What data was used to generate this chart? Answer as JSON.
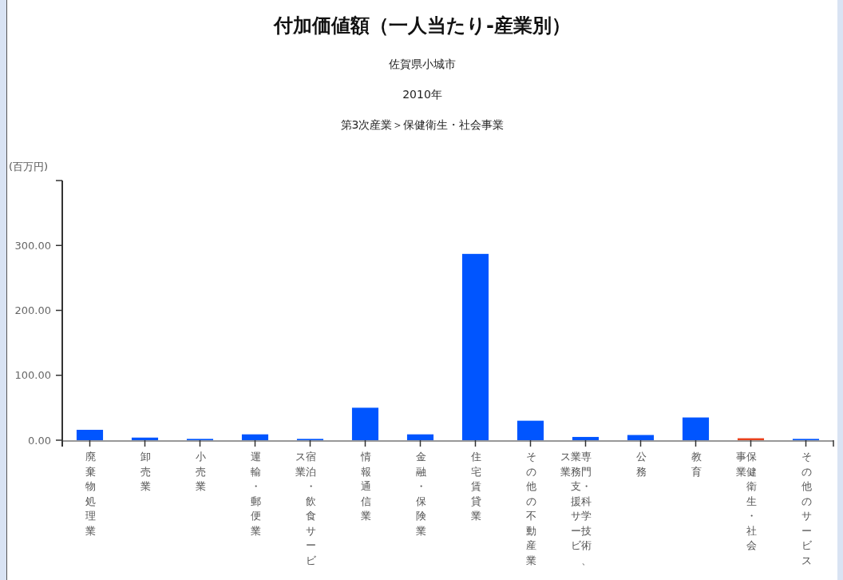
{
  "chart_data": {
    "type": "bar",
    "title": "付加価値額（一人当たり-産業別）",
    "subtitle": "佐賀県小城市",
    "annotations": [
      "2010年",
      "第3次産業＞保健衛生・社会事業"
    ],
    "ylabel": "(百万円)",
    "categories": [
      "廃棄物処理業",
      "卸売業",
      "小売業",
      "運輸・郵便業",
      "宿泊・飲食サービス業",
      "情報通信業",
      "金融・保険業",
      "住宅賃貸業",
      "その他の不動産業",
      "専門・科学技術、業務支援サービス業",
      "公務",
      "教育",
      "保健衛生・社会事業",
      "その他のサービス"
    ],
    "values": [
      16,
      4,
      2,
      9,
      2,
      50,
      9,
      287,
      30,
      5,
      8,
      35,
      3,
      2
    ],
    "colors": [
      "#0055ff",
      "#0055ff",
      "#0055ff",
      "#0055ff",
      "#0055ff",
      "#0055ff",
      "#0055ff",
      "#0055ff",
      "#0055ff",
      "#0055ff",
      "#0055ff",
      "#0055ff",
      "#e8401c",
      "#0055ff"
    ],
    "ylim": [
      0,
      400
    ],
    "yticks": [
      {
        "value": 0,
        "label": "0.00"
      },
      {
        "value": 100,
        "label": "100.00"
      },
      {
        "value": 200,
        "label": "200.00"
      },
      {
        "value": 300,
        "label": "300.00"
      },
      {
        "value": 400,
        "label": null
      }
    ],
    "grid": false
  }
}
